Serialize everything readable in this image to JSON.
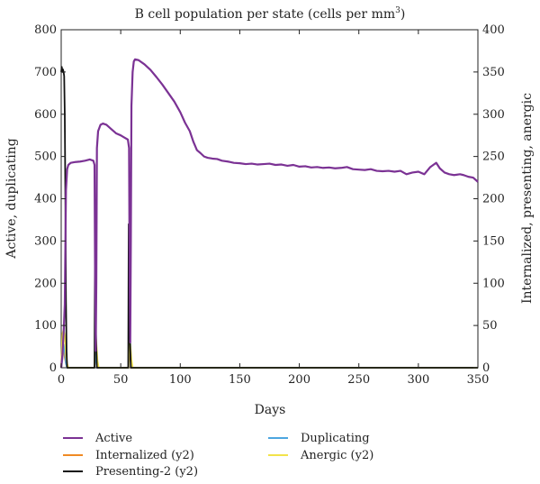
{
  "chart_data": {
    "type": "line",
    "title": "B cell population per state (cells per mm",
    "title_superscript": "3",
    "title_close": ")",
    "xlabel": "Days",
    "ylabel_left": "Active, duplicating",
    "ylabel_right": "Internalized, presenting, anergic",
    "xlim": [
      0,
      350
    ],
    "ylim_left": [
      0,
      800
    ],
    "ylim_right": [
      0,
      400
    ],
    "x_ticks": [
      "0",
      "50",
      "100",
      "150",
      "200",
      "250",
      "300",
      "350"
    ],
    "y_left_ticks": [
      "0",
      "100",
      "200",
      "300",
      "400",
      "500",
      "600",
      "700",
      "800"
    ],
    "y_right_ticks": [
      "0",
      "50",
      "100",
      "150",
      "200",
      "250",
      "300",
      "350",
      "400"
    ],
    "grid": false,
    "legend_placement": "bottom",
    "series": [
      {
        "name": "Active",
        "axis": "left",
        "color": "#7b3294",
        "points": [
          [
            0,
            0
          ],
          [
            1,
            30
          ],
          [
            2,
            80
          ],
          [
            3,
            150
          ],
          [
            4,
            420
          ],
          [
            5,
            470
          ],
          [
            6,
            480
          ],
          [
            8,
            485
          ],
          [
            12,
            487
          ],
          [
            16,
            488
          ],
          [
            20,
            490
          ],
          [
            24,
            493
          ],
          [
            27,
            490
          ],
          [
            28,
            480
          ],
          [
            28.5,
            200
          ],
          [
            29,
            40
          ],
          [
            29.5,
            200
          ],
          [
            30,
            520
          ],
          [
            31,
            560
          ],
          [
            33,
            575
          ],
          [
            35,
            578
          ],
          [
            38,
            575
          ],
          [
            42,
            565
          ],
          [
            46,
            555
          ],
          [
            50,
            550
          ],
          [
            53,
            545
          ],
          [
            56,
            540
          ],
          [
            57,
            520
          ],
          [
            57.5,
            200
          ],
          [
            58,
            60
          ],
          [
            58.5,
            300
          ],
          [
            59,
            620
          ],
          [
            60,
            700
          ],
          [
            61,
            725
          ],
          [
            62,
            730
          ],
          [
            65,
            728
          ],
          [
            70,
            718
          ],
          [
            75,
            705
          ],
          [
            80,
            688
          ],
          [
            85,
            670
          ],
          [
            90,
            650
          ],
          [
            95,
            630
          ],
          [
            100,
            605
          ],
          [
            104,
            580
          ],
          [
            108,
            560
          ],
          [
            111,
            535
          ],
          [
            114,
            515
          ],
          [
            117,
            508
          ],
          [
            120,
            500
          ],
          [
            123,
            497
          ],
          [
            127,
            495
          ],
          [
            131,
            494
          ],
          [
            135,
            490
          ],
          [
            140,
            488
          ],
          [
            145,
            485
          ],
          [
            150,
            484
          ],
          [
            155,
            482
          ],
          [
            160,
            483
          ],
          [
            165,
            481
          ],
          [
            170,
            482
          ],
          [
            175,
            483
          ],
          [
            180,
            480
          ],
          [
            185,
            481
          ],
          [
            190,
            478
          ],
          [
            195,
            480
          ],
          [
            200,
            476
          ],
          [
            205,
            477
          ],
          [
            210,
            474
          ],
          [
            215,
            475
          ],
          [
            220,
            473
          ],
          [
            225,
            474
          ],
          [
            230,
            472
          ],
          [
            235,
            473
          ],
          [
            240,
            475
          ],
          [
            245,
            470
          ],
          [
            250,
            469
          ],
          [
            255,
            468
          ],
          [
            260,
            470
          ],
          [
            265,
            466
          ],
          [
            270,
            465
          ],
          [
            275,
            466
          ],
          [
            280,
            464
          ],
          [
            285,
            466
          ],
          [
            290,
            458
          ],
          [
            295,
            462
          ],
          [
            300,
            464
          ],
          [
            305,
            458
          ],
          [
            310,
            475
          ],
          [
            315,
            485
          ],
          [
            318,
            472
          ],
          [
            322,
            462
          ],
          [
            326,
            458
          ],
          [
            330,
            456
          ],
          [
            335,
            458
          ],
          [
            338,
            456
          ],
          [
            342,
            452
          ],
          [
            346,
            450
          ],
          [
            350,
            440
          ]
        ]
      },
      {
        "name": "Duplicating",
        "axis": "left",
        "color": "#4da6e0",
        "points": [
          [
            0,
            0
          ],
          [
            1,
            20
          ],
          [
            2,
            55
          ],
          [
            3,
            40
          ],
          [
            4,
            10
          ],
          [
            5,
            0
          ],
          [
            28,
            0
          ],
          [
            28.6,
            20
          ],
          [
            29,
            40
          ],
          [
            29.6,
            15
          ],
          [
            30.5,
            0
          ],
          [
            56.5,
            0
          ],
          [
            57,
            150
          ],
          [
            57.6,
            90
          ],
          [
            58.5,
            20
          ],
          [
            60,
            0
          ],
          [
            350,
            0
          ]
        ]
      },
      {
        "name": "Internalized (y2)",
        "axis": "right",
        "color": "#f08a24",
        "points": [
          [
            0,
            0
          ],
          [
            1,
            15
          ],
          [
            2,
            22
          ],
          [
            3,
            12
          ],
          [
            4,
            5
          ],
          [
            5,
            0
          ],
          [
            28,
            0
          ],
          [
            28.6,
            22
          ],
          [
            29.5,
            10
          ],
          [
            30.5,
            0
          ],
          [
            56.5,
            0
          ],
          [
            57.2,
            22
          ],
          [
            58,
            12
          ],
          [
            59,
            0
          ],
          [
            350,
            0
          ]
        ]
      },
      {
        "name": "Anergic (y2)",
        "axis": "right",
        "color": "#f2e34a",
        "points": [
          [
            0,
            0
          ],
          [
            1,
            40
          ],
          [
            2,
            45
          ],
          [
            3,
            38
          ],
          [
            4,
            15
          ],
          [
            5,
            5
          ],
          [
            6,
            0
          ],
          [
            28,
            0
          ],
          [
            28.5,
            46
          ],
          [
            29.5,
            30
          ],
          [
            30.5,
            8
          ],
          [
            31.5,
            0
          ],
          [
            56.5,
            0
          ],
          [
            57.2,
            40
          ],
          [
            58,
            28
          ],
          [
            59,
            10
          ],
          [
            60,
            0
          ],
          [
            350,
            0
          ]
        ]
      },
      {
        "name": "Presenting-2 (y2)",
        "axis": "right",
        "color": "#111111",
        "points": [
          [
            0,
            350
          ],
          [
            0.5,
            356
          ],
          [
            1,
            350
          ],
          [
            1.5,
            353
          ],
          [
            2,
            350
          ],
          [
            2.5,
            345
          ],
          [
            3,
            300
          ],
          [
            3.5,
            200
          ],
          [
            4,
            80
          ],
          [
            4.5,
            20
          ],
          [
            5,
            0
          ],
          [
            28,
            0
          ],
          [
            28.4,
            160
          ],
          [
            28.8,
            120
          ],
          [
            29.2,
            40
          ],
          [
            30,
            0
          ],
          [
            56.3,
            0
          ],
          [
            56.7,
            170
          ],
          [
            57.1,
            120
          ],
          [
            57.6,
            40
          ],
          [
            58.5,
            0
          ],
          [
            350,
            0
          ]
        ]
      }
    ],
    "legend": [
      {
        "label": "Active",
        "color": "#7b3294",
        "col": 0
      },
      {
        "label": "Duplicating",
        "color": "#4da6e0",
        "col": 1
      },
      {
        "label": "Internalized (y2)",
        "color": "#f08a24",
        "col": 0
      },
      {
        "label": "Anergic (y2)",
        "color": "#f2e34a",
        "col": 1
      },
      {
        "label": "Presenting-2 (y2)",
        "color": "#111111",
        "col": 0
      }
    ]
  }
}
